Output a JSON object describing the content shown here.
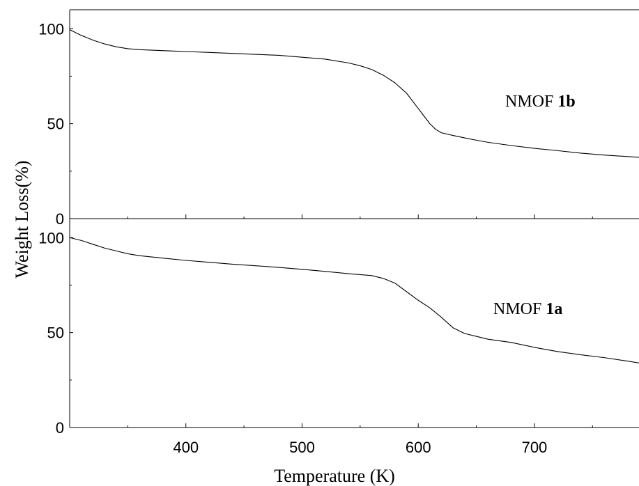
{
  "chart_data": {
    "type": "line",
    "xlabel": "Temperature (K)",
    "ylabel": "Weight Loss(%)",
    "xlim": [
      300,
      790
    ],
    "x_ticks": [
      400,
      500,
      600,
      700
    ],
    "x_tick_labels": [
      "400",
      "500",
      "600",
      "700"
    ],
    "grid": false,
    "panels": [
      {
        "position": "top",
        "ylim": [
          0,
          110
        ],
        "y_ticks": [
          0,
          50,
          100
        ],
        "y_tick_labels": [
          "0",
          "50",
          "100"
        ],
        "annotation_prefix": "NMOF ",
        "annotation_bold": "1b",
        "series": [
          {
            "x": [
              300,
              310,
              320,
              330,
              340,
              350,
              360,
              380,
              400,
              420,
              440,
              460,
              480,
              500,
              520,
              540,
              550,
              560,
              570,
              580,
              590,
              600,
              605,
              610,
              615,
              620,
              625,
              630,
              640,
              650,
              660,
              680,
              700,
              720,
              740,
              760,
              780,
              790
            ],
            "values": [
              99.5,
              96.5,
              94,
              92,
              90.5,
              89.5,
              89,
              88.5,
              88,
              87.5,
              87,
              86.5,
              86,
              85,
              84,
              82,
              80.5,
              78.5,
              75.5,
              71.5,
              66,
              58,
              54,
              50,
              47,
              45.2,
              44.5,
              43.8,
              42.5,
              41.3,
              40.2,
              38.5,
              37,
              35.8,
              34.5,
              33.5,
              32.7,
              32.3
            ]
          }
        ]
      },
      {
        "position": "bottom",
        "ylim": [
          0,
          110
        ],
        "y_ticks": [
          0,
          50,
          100
        ],
        "y_tick_labels": [
          "0",
          "50",
          "100"
        ],
        "annotation_prefix": "NMOF ",
        "annotation_bold": "1a",
        "series": [
          {
            "x": [
              300,
              310,
              320,
              330,
              340,
              350,
              360,
              380,
              400,
              420,
              440,
              460,
              480,
              500,
              520,
              540,
              560,
              570,
              580,
              590,
              600,
              610,
              620,
              630,
              640,
              650,
              660,
              680,
              700,
              720,
              740,
              760,
              780,
              790
            ],
            "values": [
              100,
              98.5,
              96.5,
              94.5,
              93,
              91.5,
              90.5,
              89.2,
              88,
              87,
              86,
              85.2,
              84.3,
              83.3,
              82.2,
              81,
              80,
              78.5,
              76,
              71.5,
              67,
              63,
              58,
              52.5,
              49.5,
              48,
              46.5,
              44.8,
              42.2,
              40,
              38.3,
              36.8,
              35,
              34
            ]
          }
        ]
      }
    ]
  }
}
